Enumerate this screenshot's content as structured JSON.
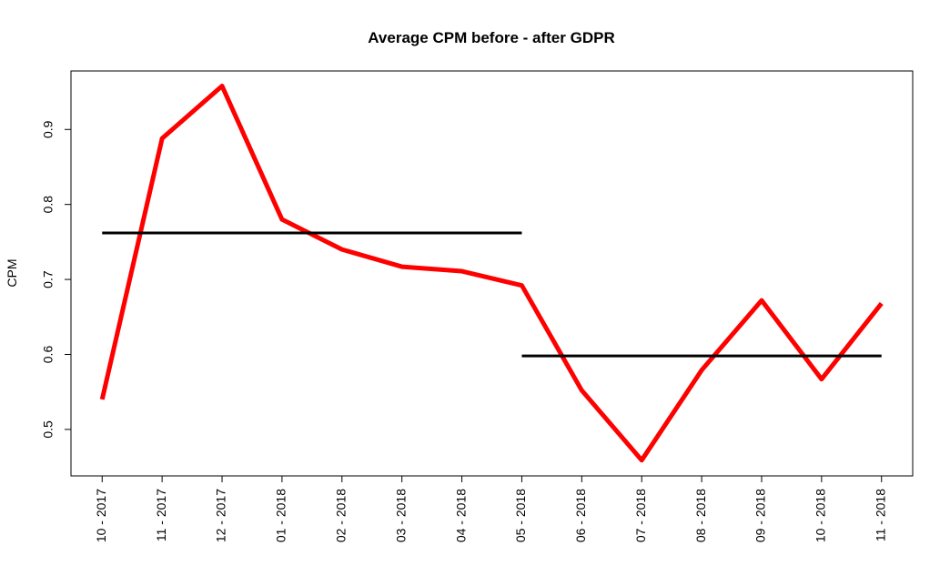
{
  "chart_data": {
    "type": "line",
    "title": "Average CPM before - after GDPR",
    "y_label": "CPM",
    "categories": [
      "10 - 2017",
      "11 - 2017",
      "12 - 2017",
      "01 - 2018",
      "02 - 2018",
      "03 - 2018",
      "04 - 2018",
      "05 - 2018",
      "06 - 2018",
      "07 - 2018",
      "08 - 2018",
      "09 - 2018",
      "10 - 2018",
      "11 - 2018"
    ],
    "series": [
      {
        "color": "#ff0000",
        "values": [
          0.54,
          0.888,
          0.958,
          0.78,
          0.74,
          0.717,
          0.711,
          0.692,
          0.552,
          0.459,
          0.579,
          0.672,
          0.567,
          0.668
        ]
      },
      {
        "color": "#000000",
        "values": [
          0.762,
          0.762,
          0.762,
          0.762,
          0.762,
          0.762,
          0.762,
          0.762,
          null,
          null,
          null,
          null,
          null,
          null
        ]
      },
      {
        "color": "#000000",
        "values": [
          null,
          null,
          null,
          null,
          null,
          null,
          null,
          0.598,
          0.598,
          0.598,
          0.598,
          0.598,
          0.598,
          0.598
        ]
      }
    ],
    "ylim": [
      0.438,
      0.978
    ],
    "yticks": [
      0.5,
      0.6,
      0.7,
      0.8,
      0.9
    ]
  }
}
